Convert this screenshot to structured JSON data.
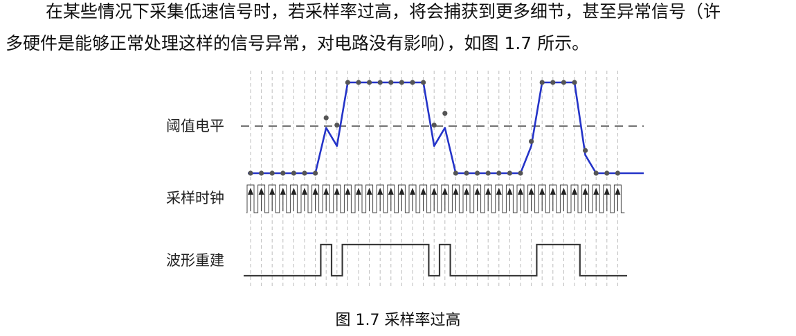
{
  "paragraph": {
    "line1": "在某些情况下采集低速信号时，若采样率过高，将会捕获到更多细节，甚至异常信号（许",
    "line2": "多硬件是能够正常处理这样的信号异常，对电路没有影响），如图  1.7 所示。"
  },
  "figure": {
    "labels": {
      "threshold": "阈值电平",
      "clock": "采样时钟",
      "reconstruct": "波形重建"
    },
    "caption": "图  1.7  采样率过高"
  },
  "colors": {
    "signal": "#2433c8",
    "sample_dot": "#555555",
    "guide": "#bdbdbd",
    "threshold": "#444444",
    "clock": "#444444",
    "reconstructed": "#3a3a3a"
  },
  "chart_data": {
    "type": "line",
    "series": [
      {
        "values": [
          0,
          0,
          0,
          0,
          0,
          0,
          0,
          0.5,
          0.3,
          1,
          1,
          1,
          1,
          1,
          1,
          1,
          1,
          0.3,
          0.5,
          0,
          0,
          0,
          0,
          0,
          0,
          0,
          0.3,
          1,
          1,
          1,
          1,
          0.2,
          0,
          0,
          0
        ],
        "sampled": [
          0,
          0,
          0,
          0,
          0,
          0,
          0,
          0.61,
          0.53,
          1,
          1,
          1,
          1,
          1,
          1,
          1,
          1,
          0.53,
          0.66,
          0,
          0,
          0,
          0,
          0,
          0,
          0,
          0.35,
          1,
          1,
          1,
          1,
          0.25,
          0,
          0,
          0
        ]
      },
      {
        "values": [
          0,
          0,
          0,
          0,
          0,
          0,
          0,
          1,
          0,
          1,
          1,
          1,
          1,
          1,
          1,
          1,
          1,
          0,
          1,
          0,
          0,
          0,
          0,
          0,
          0,
          0,
          0,
          1,
          1,
          1,
          1,
          0,
          0,
          0,
          0
        ]
      }
    ],
    "ylim": [
      0,
      1
    ],
    "grid": true,
    "legend": "none"
  }
}
